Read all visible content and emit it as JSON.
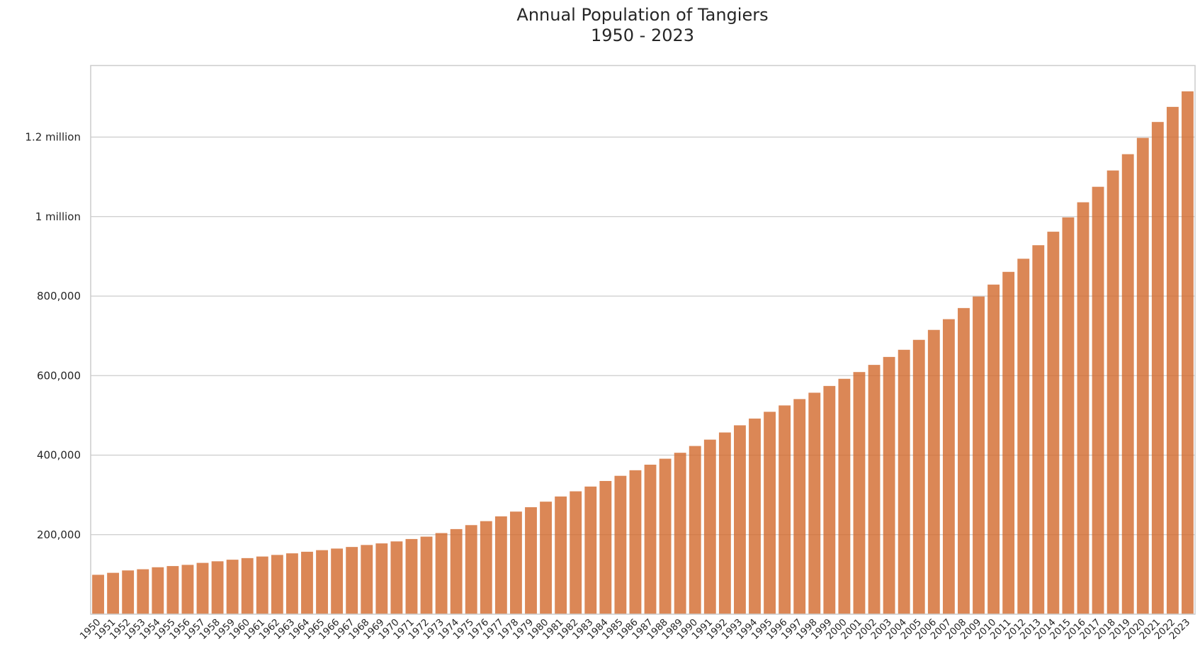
{
  "chart_data": {
    "type": "bar",
    "title": "Annual Population of Tangiers",
    "subtitle": "1950 - 2023",
    "xlabel": "",
    "ylabel": "",
    "ylim": [
      0,
      1380000
    ],
    "grid": true,
    "bar_color": "#d2692c",
    "yticks": [
      {
        "value": 200000,
        "label": "200,000"
      },
      {
        "value": 400000,
        "label": "400,000"
      },
      {
        "value": 600000,
        "label": "600,000"
      },
      {
        "value": 800000,
        "label": "800,000"
      },
      {
        "value": 1000000,
        "label": "1 million"
      },
      {
        "value": 1200000,
        "label": "1.2 million"
      }
    ],
    "categories": [
      "1950",
      "1951",
      "1952",
      "1953",
      "1954",
      "1955",
      "1956",
      "1957",
      "1958",
      "1959",
      "1960",
      "1961",
      "1962",
      "1963",
      "1964",
      "1965",
      "1966",
      "1967",
      "1968",
      "1969",
      "1970",
      "1971",
      "1972",
      "1973",
      "1974",
      "1975",
      "1976",
      "1977",
      "1978",
      "1979",
      "1980",
      "1981",
      "1982",
      "1983",
      "1984",
      "1985",
      "1986",
      "1987",
      "1988",
      "1989",
      "1990",
      "1991",
      "1992",
      "1993",
      "1994",
      "1995",
      "1996",
      "1997",
      "1998",
      "1999",
      "2000",
      "2001",
      "2002",
      "2003",
      "2004",
      "2005",
      "2006",
      "2007",
      "2008",
      "2009",
      "2010",
      "2011",
      "2012",
      "2013",
      "2014",
      "2015",
      "2016",
      "2017",
      "2018",
      "2019",
      "2020",
      "2021",
      "2022",
      "2023"
    ],
    "values": [
      99000,
      104000,
      110000,
      113000,
      118000,
      121000,
      124000,
      129000,
      133000,
      137000,
      141000,
      145000,
      149000,
      153000,
      157000,
      161000,
      165000,
      169000,
      174000,
      178000,
      183000,
      189000,
      195000,
      204000,
      214000,
      224000,
      234000,
      246000,
      258000,
      269000,
      283000,
      296000,
      309000,
      321000,
      335000,
      348000,
      362000,
      376000,
      391000,
      406000,
      423000,
      439000,
      457000,
      475000,
      492000,
      509000,
      525000,
      541000,
      557000,
      574000,
      592000,
      609000,
      627000,
      647000,
      665000,
      690000,
      715000,
      742000,
      770000,
      799000,
      829000,
      861000,
      894000,
      928000,
      962000,
      998000,
      1036000,
      1075000,
      1116000,
      1157000,
      1198000,
      1238000,
      1276000,
      1315000
    ]
  }
}
